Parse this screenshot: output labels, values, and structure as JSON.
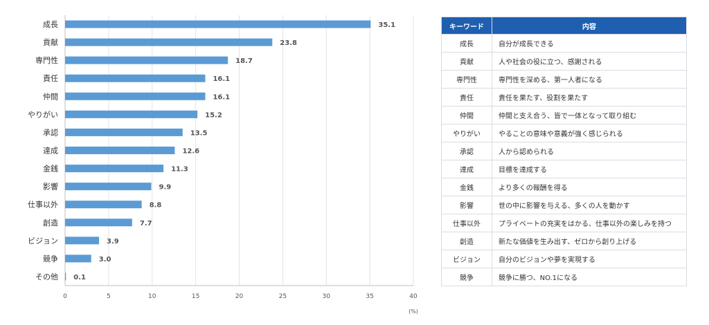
{
  "chart_data": {
    "type": "bar",
    "orientation": "horizontal",
    "categories": [
      "成長",
      "貢献",
      "専門性",
      "責任",
      "仲間",
      "やりがい",
      "承認",
      "達成",
      "金銭",
      "影響",
      "仕事以外",
      "創造",
      "ビジョン",
      "競争",
      "その他"
    ],
    "values": [
      35.1,
      23.8,
      18.7,
      16.1,
      16.1,
      15.2,
      13.5,
      12.6,
      11.3,
      9.9,
      8.8,
      7.7,
      3.9,
      3.0,
      0.1
    ],
    "value_labels": [
      "35.1",
      "23.8",
      "18.7",
      "16.1",
      "16.1",
      "15.2",
      "13.5",
      "12.6",
      "11.3",
      "9.9",
      "8.8",
      "7.7",
      "3.9",
      "3.0",
      "0.1"
    ],
    "x_ticks": [
      "0",
      "5",
      "10",
      "15",
      "20",
      "25",
      "30",
      "35",
      "40"
    ],
    "xlim": [
      0,
      40
    ],
    "xlabel": "(%)",
    "bar_color": "#5b9bd5",
    "grid": true
  },
  "table": {
    "headers": [
      "キーワード",
      "内容"
    ],
    "header_color": "#1f5fb0",
    "rows": [
      {
        "keyword": "成長",
        "content": "自分が成長できる"
      },
      {
        "keyword": "貢献",
        "content": "人や社会の役に立つ、感謝される"
      },
      {
        "keyword": "専門性",
        "content": "専門性を深める、第一人者になる"
      },
      {
        "keyword": "責任",
        "content": "責任を果たす、役割を果たす"
      },
      {
        "keyword": "仲間",
        "content": "仲間と支え合う、皆で一体となって取り組む"
      },
      {
        "keyword": "やりがい",
        "content": "やることの意味や意義が強く感じられる"
      },
      {
        "keyword": "承認",
        "content": "人から認められる"
      },
      {
        "keyword": "達成",
        "content": "目標を達成する"
      },
      {
        "keyword": "金銭",
        "content": "より多くの報酬を得る"
      },
      {
        "keyword": "影響",
        "content": "世の中に影響を与える、多くの人を動かす"
      },
      {
        "keyword": "仕事以外",
        "content": "プライベートの充実をはかる、仕事以外の楽しみを持つ"
      },
      {
        "keyword": "創造",
        "content": "新たな価値を生み出す、ゼロから創り上げる"
      },
      {
        "keyword": "ビジョン",
        "content": "自分のビジョンや夢を実現する"
      },
      {
        "keyword": "競争",
        "content": "競争に勝つ、NO.1になる"
      }
    ]
  }
}
